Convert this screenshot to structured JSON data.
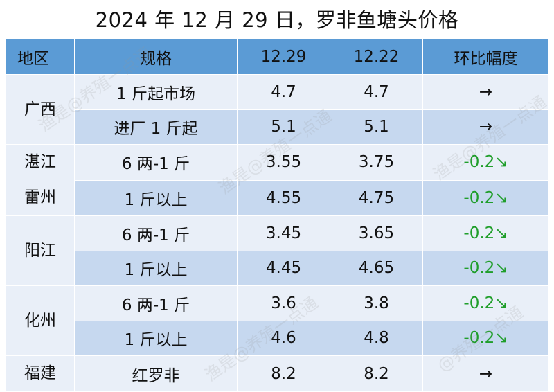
{
  "title": "2024 年 12 月 29 日，罗非鱼塘头价格",
  "columns": [
    "地区",
    "规格",
    "12.29",
    "12.22",
    "环比幅度"
  ],
  "regions": [
    {
      "name": "广西",
      "rows": [
        {
          "spec": "1 斤起市场",
          "cur": "4.7",
          "prev": "4.7",
          "change": "→"
        },
        {
          "spec": "进厂 1 斤起",
          "cur": "5.1",
          "prev": "5.1",
          "change": "→"
        }
      ]
    },
    {
      "name": [
        "湛江",
        "雷州"
      ],
      "rows": [
        {
          "spec": "6 两-1 斤",
          "cur": "3.55",
          "prev": "3.75",
          "change": "-0.2↘"
        },
        {
          "spec": "1 斤以上",
          "cur": "4.55",
          "prev": "4.75",
          "change": "-0.2↘"
        }
      ]
    },
    {
      "name": "阳江",
      "rows": [
        {
          "spec": "6 两-1 斤",
          "cur": "3.45",
          "prev": "3.65",
          "change": "-0.2↘"
        },
        {
          "spec": "1 斤以上",
          "cur": "4.45",
          "prev": "4.65",
          "change": "-0.2↘"
        }
      ]
    },
    {
      "name": "化州",
      "rows": [
        {
          "spec": "6 两-1 斤",
          "cur": "3.6",
          "prev": "3.8",
          "change": "-0.2↘"
        },
        {
          "spec": "1 斤以上",
          "cur": "4.6",
          "prev": "4.8",
          "change": "-0.2↘"
        }
      ]
    },
    {
      "name": "福建",
      "rows": [
        {
          "spec": "红罗非",
          "cur": "8.2",
          "prev": "8.2",
          "change": "→"
        }
      ]
    }
  ],
  "watermarks": [
    "渔是@养殖一点通",
    "渔是@养殖一点通",
    "渔是@养殖一点通",
    "渔是@养殖一点通",
    "@养殖一点通"
  ],
  "colors": {
    "header_bg": "#5b9bd5",
    "row_light": "#e9eff8",
    "row_dark": "#c6d8ef",
    "decrease": "#1f9e2a"
  }
}
